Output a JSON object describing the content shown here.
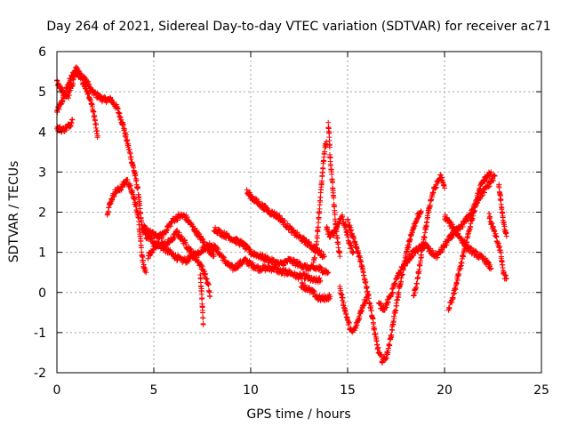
{
  "chart_data": {
    "type": "scatter",
    "title": "Day 264 of 2021, Sidereal Day-to-day VTEC variation (SDTVAR) for receiver ac71",
    "xlabel": "GPS time / hours",
    "ylabel": "SDTVAR / TECUs",
    "xlim": [
      0,
      25
    ],
    "ylim": [
      -2,
      6
    ],
    "xticks": [
      "0",
      "5",
      "10",
      "15",
      "20",
      "25"
    ],
    "yticks": [
      "-2",
      "-1",
      "0",
      "1",
      "2",
      "3",
      "4",
      "5",
      "6"
    ],
    "grid": true,
    "marker": "+",
    "series": [
      {
        "name": "SDTVAR",
        "color": "#ff0000",
        "tracks": [
          [
            [
              0.0,
              4.5
            ],
            [
              0.3,
              4.8
            ],
            [
              0.6,
              5.2
            ],
            [
              0.9,
              5.5
            ],
            [
              1.2,
              5.4
            ],
            [
              1.5,
              5.3
            ],
            [
              1.8,
              5.0
            ],
            [
              2.1,
              4.9
            ],
            [
              2.4,
              4.8
            ],
            [
              2.8,
              4.8
            ],
            [
              3.1,
              4.6
            ],
            [
              3.4,
              4.2
            ],
            [
              3.6,
              3.8
            ],
            [
              3.8,
              3.4
            ],
            [
              4.0,
              3.0
            ],
            [
              4.2,
              2.5
            ],
            [
              4.3,
              2.0
            ],
            [
              4.4,
              1.6
            ],
            [
              4.6,
              1.4
            ],
            [
              4.9,
              1.3
            ],
            [
              5.2,
              1.2
            ],
            [
              5.5,
              1.1
            ],
            [
              5.8,
              1.0
            ],
            [
              6.1,
              0.9
            ],
            [
              6.4,
              0.8
            ],
            [
              6.7,
              0.8
            ],
            [
              7.0,
              0.9
            ],
            [
              7.3,
              1.0
            ],
            [
              7.6,
              1.1
            ],
            [
              7.9,
              1.2
            ],
            [
              8.2,
              1.1
            ],
            [
              8.5,
              0.9
            ],
            [
              8.8,
              0.7
            ],
            [
              9.1,
              0.6
            ],
            [
              9.4,
              0.7
            ],
            [
              9.7,
              0.8
            ],
            [
              10.0,
              0.7
            ],
            [
              10.4,
              0.6
            ],
            [
              10.8,
              0.6
            ],
            [
              11.2,
              0.6
            ],
            [
              11.6,
              0.5
            ],
            [
              12.0,
              0.5
            ],
            [
              12.4,
              0.4
            ],
            [
              12.8,
              0.4
            ],
            [
              13.2,
              0.3
            ],
            [
              13.6,
              0.3
            ]
          ],
          [
            [
              0.0,
              5.25
            ],
            [
              0.2,
              5.1
            ],
            [
              0.4,
              4.9
            ],
            [
              0.6,
              4.9
            ],
            [
              0.8,
              5.2
            ],
            [
              1.0,
              5.6
            ],
            [
              1.2,
              5.4
            ],
            [
              1.5,
              5.1
            ],
            [
              1.8,
              4.7
            ],
            [
              2.0,
              4.2
            ],
            [
              2.1,
              3.9
            ]
          ],
          [
            [
              0.0,
              4.1
            ],
            [
              0.3,
              4.05
            ],
            [
              0.5,
              4.1
            ],
            [
              0.7,
              4.2
            ],
            [
              0.8,
              4.3
            ]
          ],
          [
            [
              2.6,
              2.0
            ],
            [
              2.8,
              2.3
            ],
            [
              3.0,
              2.5
            ],
            [
              3.3,
              2.6
            ],
            [
              3.6,
              2.8
            ],
            [
              3.8,
              2.6
            ],
            [
              4.0,
              2.3
            ],
            [
              4.2,
              1.9
            ],
            [
              4.3,
              1.4
            ],
            [
              4.4,
              0.9
            ],
            [
              4.5,
              0.6
            ],
            [
              4.6,
              0.5
            ]
          ],
          [
            [
              4.5,
              1.6
            ],
            [
              4.8,
              1.5
            ],
            [
              5.1,
              1.4
            ],
            [
              5.4,
              1.4
            ],
            [
              5.7,
              1.6
            ],
            [
              6.0,
              1.8
            ],
            [
              6.3,
              1.9
            ],
            [
              6.6,
              1.9
            ],
            [
              6.9,
              1.7
            ],
            [
              7.2,
              1.5
            ],
            [
              7.5,
              1.3
            ],
            [
              7.8,
              1.1
            ],
            [
              8.1,
              0.9
            ]
          ],
          [
            [
              4.7,
              0.9
            ],
            [
              5.0,
              1.1
            ],
            [
              5.3,
              1.2
            ],
            [
              5.6,
              1.2
            ],
            [
              5.9,
              1.3
            ],
            [
              6.2,
              1.5
            ],
            [
              6.5,
              1.3
            ],
            [
              6.8,
              1.1
            ],
            [
              7.1,
              0.9
            ],
            [
              7.4,
              0.7
            ],
            [
              7.6,
              0.5
            ],
            [
              7.8,
              0.2
            ],
            [
              7.9,
              -0.1
            ]
          ],
          [
            [
              7.4,
              0.4
            ],
            [
              7.45,
              0.1
            ],
            [
              7.5,
              -0.3
            ],
            [
              7.55,
              -0.8
            ]
          ],
          [
            [
              8.1,
              1.6
            ],
            [
              8.4,
              1.5
            ],
            [
              8.8,
              1.4
            ],
            [
              9.2,
              1.3
            ],
            [
              9.6,
              1.2
            ],
            [
              10.0,
              1.0
            ],
            [
              10.5,
              0.9
            ],
            [
              11.0,
              0.8
            ],
            [
              11.5,
              0.7
            ],
            [
              12.0,
              0.8
            ],
            [
              12.5,
              0.7
            ],
            [
              13.0,
              0.6
            ],
            [
              13.5,
              0.6
            ],
            [
              14.0,
              0.5
            ]
          ],
          [
            [
              9.8,
              2.5
            ],
            [
              10.2,
              2.3
            ],
            [
              10.6,
              2.15
            ],
            [
              11.0,
              2.0
            ],
            [
              11.4,
              1.9
            ],
            [
              11.8,
              1.7
            ],
            [
              12.2,
              1.5
            ],
            [
              12.6,
              1.35
            ],
            [
              13.0,
              1.2
            ],
            [
              13.4,
              1.05
            ],
            [
              13.8,
              0.9
            ]
          ],
          [
            [
              12.6,
              0.2
            ],
            [
              12.9,
              0.1
            ],
            [
              13.2,
              0.0
            ],
            [
              13.5,
              -0.15
            ],
            [
              13.8,
              -0.15
            ],
            [
              14.1,
              -0.1
            ]
          ],
          [
            [
              13.2,
              0.6
            ],
            [
              13.4,
              1.2
            ],
            [
              13.5,
              1.8
            ],
            [
              13.6,
              2.4
            ],
            [
              13.7,
              3.0
            ],
            [
              13.8,
              3.5
            ],
            [
              13.9,
              3.75
            ]
          ],
          [
            [
              14.0,
              4.2
            ],
            [
              14.05,
              3.9
            ],
            [
              14.1,
              3.3
            ],
            [
              14.2,
              2.8
            ],
            [
              14.3,
              2.2
            ],
            [
              14.4,
              1.6
            ],
            [
              14.5,
              1.2
            ],
            [
              14.6,
              0.9
            ]
          ],
          [
            [
              13.9,
              1.6
            ],
            [
              14.1,
              1.4
            ],
            [
              14.3,
              1.5
            ],
            [
              14.5,
              1.7
            ],
            [
              14.7,
              1.9
            ],
            [
              14.9,
              1.6
            ],
            [
              15.1,
              1.2
            ],
            [
              15.3,
              1.0
            ]
          ],
          [
            [
              14.6,
              0.1
            ],
            [
              14.8,
              -0.3
            ],
            [
              15.0,
              -0.7
            ],
            [
              15.2,
              -1.0
            ],
            [
              15.4,
              -0.9
            ],
            [
              15.6,
              -0.6
            ],
            [
              15.8,
              -0.3
            ],
            [
              16.0,
              -0.1
            ]
          ],
          [
            [
              15.0,
              1.8
            ],
            [
              15.2,
              1.5
            ],
            [
              15.4,
              1.2
            ],
            [
              15.6,
              0.9
            ],
            [
              15.8,
              0.5
            ],
            [
              16.0,
              0.1
            ],
            [
              16.2,
              -0.4
            ],
            [
              16.4,
              -1.0
            ],
            [
              16.6,
              -1.5
            ],
            [
              16.8,
              -1.7
            ],
            [
              17.0,
              -1.6
            ],
            [
              17.2,
              -1.2
            ],
            [
              17.4,
              -0.6
            ],
            [
              17.6,
              -0.1
            ],
            [
              17.8,
              0.4
            ],
            [
              18.0,
              0.9
            ],
            [
              18.2,
              1.3
            ],
            [
              18.4,
              1.6
            ],
            [
              18.6,
              1.9
            ],
            [
              18.8,
              2.0
            ]
          ],
          [
            [
              16.6,
              -0.3
            ],
            [
              16.9,
              -0.4
            ],
            [
              17.2,
              -0.1
            ],
            [
              17.5,
              0.3
            ],
            [
              17.8,
              0.6
            ],
            [
              18.1,
              0.8
            ],
            [
              18.4,
              1.0
            ],
            [
              18.7,
              1.1
            ],
            [
              19.0,
              1.2
            ],
            [
              19.3,
              1.0
            ],
            [
              19.6,
              0.9
            ],
            [
              19.9,
              1.1
            ],
            [
              20.2,
              1.3
            ],
            [
              20.5,
              1.5
            ],
            [
              20.8,
              1.6
            ],
            [
              21.1,
              1.8
            ],
            [
              21.4,
              2.0
            ],
            [
              21.7,
              2.3
            ],
            [
              22.0,
              2.5
            ],
            [
              22.3,
              2.7
            ],
            [
              22.6,
              2.9
            ]
          ],
          [
            [
              18.4,
              -0.1
            ],
            [
              18.6,
              0.3
            ],
            [
              18.8,
              0.9
            ],
            [
              19.0,
              1.5
            ],
            [
              19.2,
              2.1
            ],
            [
              19.4,
              2.5
            ],
            [
              19.6,
              2.7
            ],
            [
              19.8,
              2.9
            ],
            [
              20.0,
              2.6
            ]
          ],
          [
            [
              20.0,
              1.9
            ],
            [
              20.3,
              1.7
            ],
            [
              20.6,
              1.5
            ],
            [
              20.9,
              1.3
            ],
            [
              21.2,
              1.1
            ],
            [
              21.5,
              1.0
            ],
            [
              21.8,
              0.9
            ],
            [
              22.1,
              0.8
            ],
            [
              22.4,
              0.6
            ]
          ],
          [
            [
              20.2,
              -0.4
            ],
            [
              20.4,
              -0.2
            ],
            [
              20.6,
              0.2
            ],
            [
              20.8,
              0.6
            ],
            [
              21.0,
              1.0
            ],
            [
              21.2,
              1.4
            ],
            [
              21.4,
              1.8
            ],
            [
              21.6,
              2.2
            ],
            [
              21.8,
              2.6
            ],
            [
              22.0,
              2.8
            ],
            [
              22.2,
              2.9
            ],
            [
              22.4,
              3.0
            ]
          ],
          [
            [
              22.3,
              1.9
            ],
            [
              22.5,
              1.6
            ],
            [
              22.7,
              1.3
            ],
            [
              22.9,
              1.0
            ],
            [
              23.0,
              0.6
            ],
            [
              23.1,
              0.4
            ],
            [
              23.2,
              0.35
            ]
          ],
          [
            [
              22.8,
              2.7
            ],
            [
              23.0,
              1.9
            ],
            [
              23.1,
              1.6
            ],
            [
              23.2,
              1.4
            ]
          ]
        ]
      }
    ]
  }
}
